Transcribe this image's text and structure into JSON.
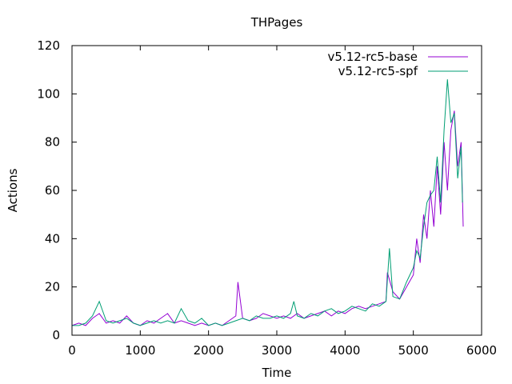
{
  "chart_data": {
    "type": "line",
    "title": "THPages",
    "xlabel": "Time",
    "ylabel": "Actions",
    "xlim": [
      0,
      6000
    ],
    "ylim": [
      0,
      120
    ],
    "x_ticks": [
      0,
      1000,
      2000,
      3000,
      4000,
      5000,
      6000
    ],
    "y_ticks": [
      0,
      20,
      40,
      60,
      80,
      100,
      120
    ],
    "grid": false,
    "legend_position": "top-right",
    "series": [
      {
        "name": "v5.12-rc5-base",
        "color": "#9400d3",
        "points": [
          [
            0,
            4
          ],
          [
            100,
            5
          ],
          [
            200,
            4
          ],
          [
            300,
            7
          ],
          [
            400,
            9
          ],
          [
            500,
            5
          ],
          [
            600,
            6
          ],
          [
            700,
            5
          ],
          [
            800,
            8
          ],
          [
            900,
            5
          ],
          [
            1000,
            4
          ],
          [
            1100,
            6
          ],
          [
            1200,
            5
          ],
          [
            1300,
            7
          ],
          [
            1400,
            9
          ],
          [
            1500,
            5
          ],
          [
            1600,
            6
          ],
          [
            1700,
            5
          ],
          [
            1800,
            4
          ],
          [
            1900,
            5
          ],
          [
            2000,
            4
          ],
          [
            2100,
            5
          ],
          [
            2200,
            4
          ],
          [
            2300,
            6
          ],
          [
            2400,
            8
          ],
          [
            2430,
            22
          ],
          [
            2500,
            7
          ],
          [
            2600,
            6
          ],
          [
            2700,
            7
          ],
          [
            2800,
            9
          ],
          [
            2900,
            8
          ],
          [
            3000,
            7
          ],
          [
            3100,
            8
          ],
          [
            3200,
            7
          ],
          [
            3300,
            9
          ],
          [
            3400,
            7
          ],
          [
            3500,
            8
          ],
          [
            3600,
            9
          ],
          [
            3700,
            10
          ],
          [
            3800,
            8
          ],
          [
            3900,
            10
          ],
          [
            4000,
            9
          ],
          [
            4100,
            11
          ],
          [
            4200,
            12
          ],
          [
            4300,
            11
          ],
          [
            4400,
            12
          ],
          [
            4500,
            13
          ],
          [
            4600,
            14
          ],
          [
            4620,
            26
          ],
          [
            4700,
            18
          ],
          [
            4800,
            15
          ],
          [
            4900,
            20
          ],
          [
            5000,
            25
          ],
          [
            5050,
            40
          ],
          [
            5100,
            30
          ],
          [
            5150,
            50
          ],
          [
            5200,
            40
          ],
          [
            5250,
            60
          ],
          [
            5300,
            45
          ],
          [
            5350,
            70
          ],
          [
            5400,
            50
          ],
          [
            5450,
            80
          ],
          [
            5500,
            60
          ],
          [
            5550,
            85
          ],
          [
            5600,
            93
          ],
          [
            5650,
            70
          ],
          [
            5700,
            80
          ],
          [
            5730,
            45
          ]
        ]
      },
      {
        "name": "v5.12-rc5-spf",
        "color": "#009e73",
        "points": [
          [
            0,
            4
          ],
          [
            100,
            4
          ],
          [
            200,
            5
          ],
          [
            300,
            8
          ],
          [
            400,
            14
          ],
          [
            500,
            6
          ],
          [
            600,
            5
          ],
          [
            700,
            6
          ],
          [
            800,
            7
          ],
          [
            900,
            5
          ],
          [
            1000,
            4
          ],
          [
            1100,
            5
          ],
          [
            1200,
            6
          ],
          [
            1300,
            5
          ],
          [
            1400,
            6
          ],
          [
            1500,
            5
          ],
          [
            1600,
            11
          ],
          [
            1700,
            6
          ],
          [
            1800,
            5
          ],
          [
            1900,
            7
          ],
          [
            2000,
            4
          ],
          [
            2100,
            5
          ],
          [
            2200,
            4
          ],
          [
            2300,
            5
          ],
          [
            2400,
            6
          ],
          [
            2500,
            7
          ],
          [
            2600,
            6
          ],
          [
            2700,
            8
          ],
          [
            2800,
            7
          ],
          [
            2900,
            7
          ],
          [
            3000,
            8
          ],
          [
            3100,
            7
          ],
          [
            3200,
            9
          ],
          [
            3250,
            14
          ],
          [
            3300,
            8
          ],
          [
            3400,
            7
          ],
          [
            3500,
            9
          ],
          [
            3600,
            8
          ],
          [
            3700,
            10
          ],
          [
            3800,
            11
          ],
          [
            3900,
            9
          ],
          [
            4000,
            10
          ],
          [
            4100,
            12
          ],
          [
            4200,
            11
          ],
          [
            4300,
            10
          ],
          [
            4400,
            13
          ],
          [
            4500,
            12
          ],
          [
            4600,
            14
          ],
          [
            4650,
            36
          ],
          [
            4700,
            16
          ],
          [
            4800,
            15
          ],
          [
            4900,
            22
          ],
          [
            5000,
            28
          ],
          [
            5050,
            35
          ],
          [
            5100,
            32
          ],
          [
            5150,
            45
          ],
          [
            5200,
            55
          ],
          [
            5250,
            58
          ],
          [
            5300,
            60
          ],
          [
            5350,
            74
          ],
          [
            5400,
            55
          ],
          [
            5450,
            85
          ],
          [
            5500,
            106
          ],
          [
            5550,
            88
          ],
          [
            5600,
            92
          ],
          [
            5650,
            65
          ],
          [
            5700,
            78
          ],
          [
            5720,
            55
          ]
        ]
      }
    ]
  }
}
